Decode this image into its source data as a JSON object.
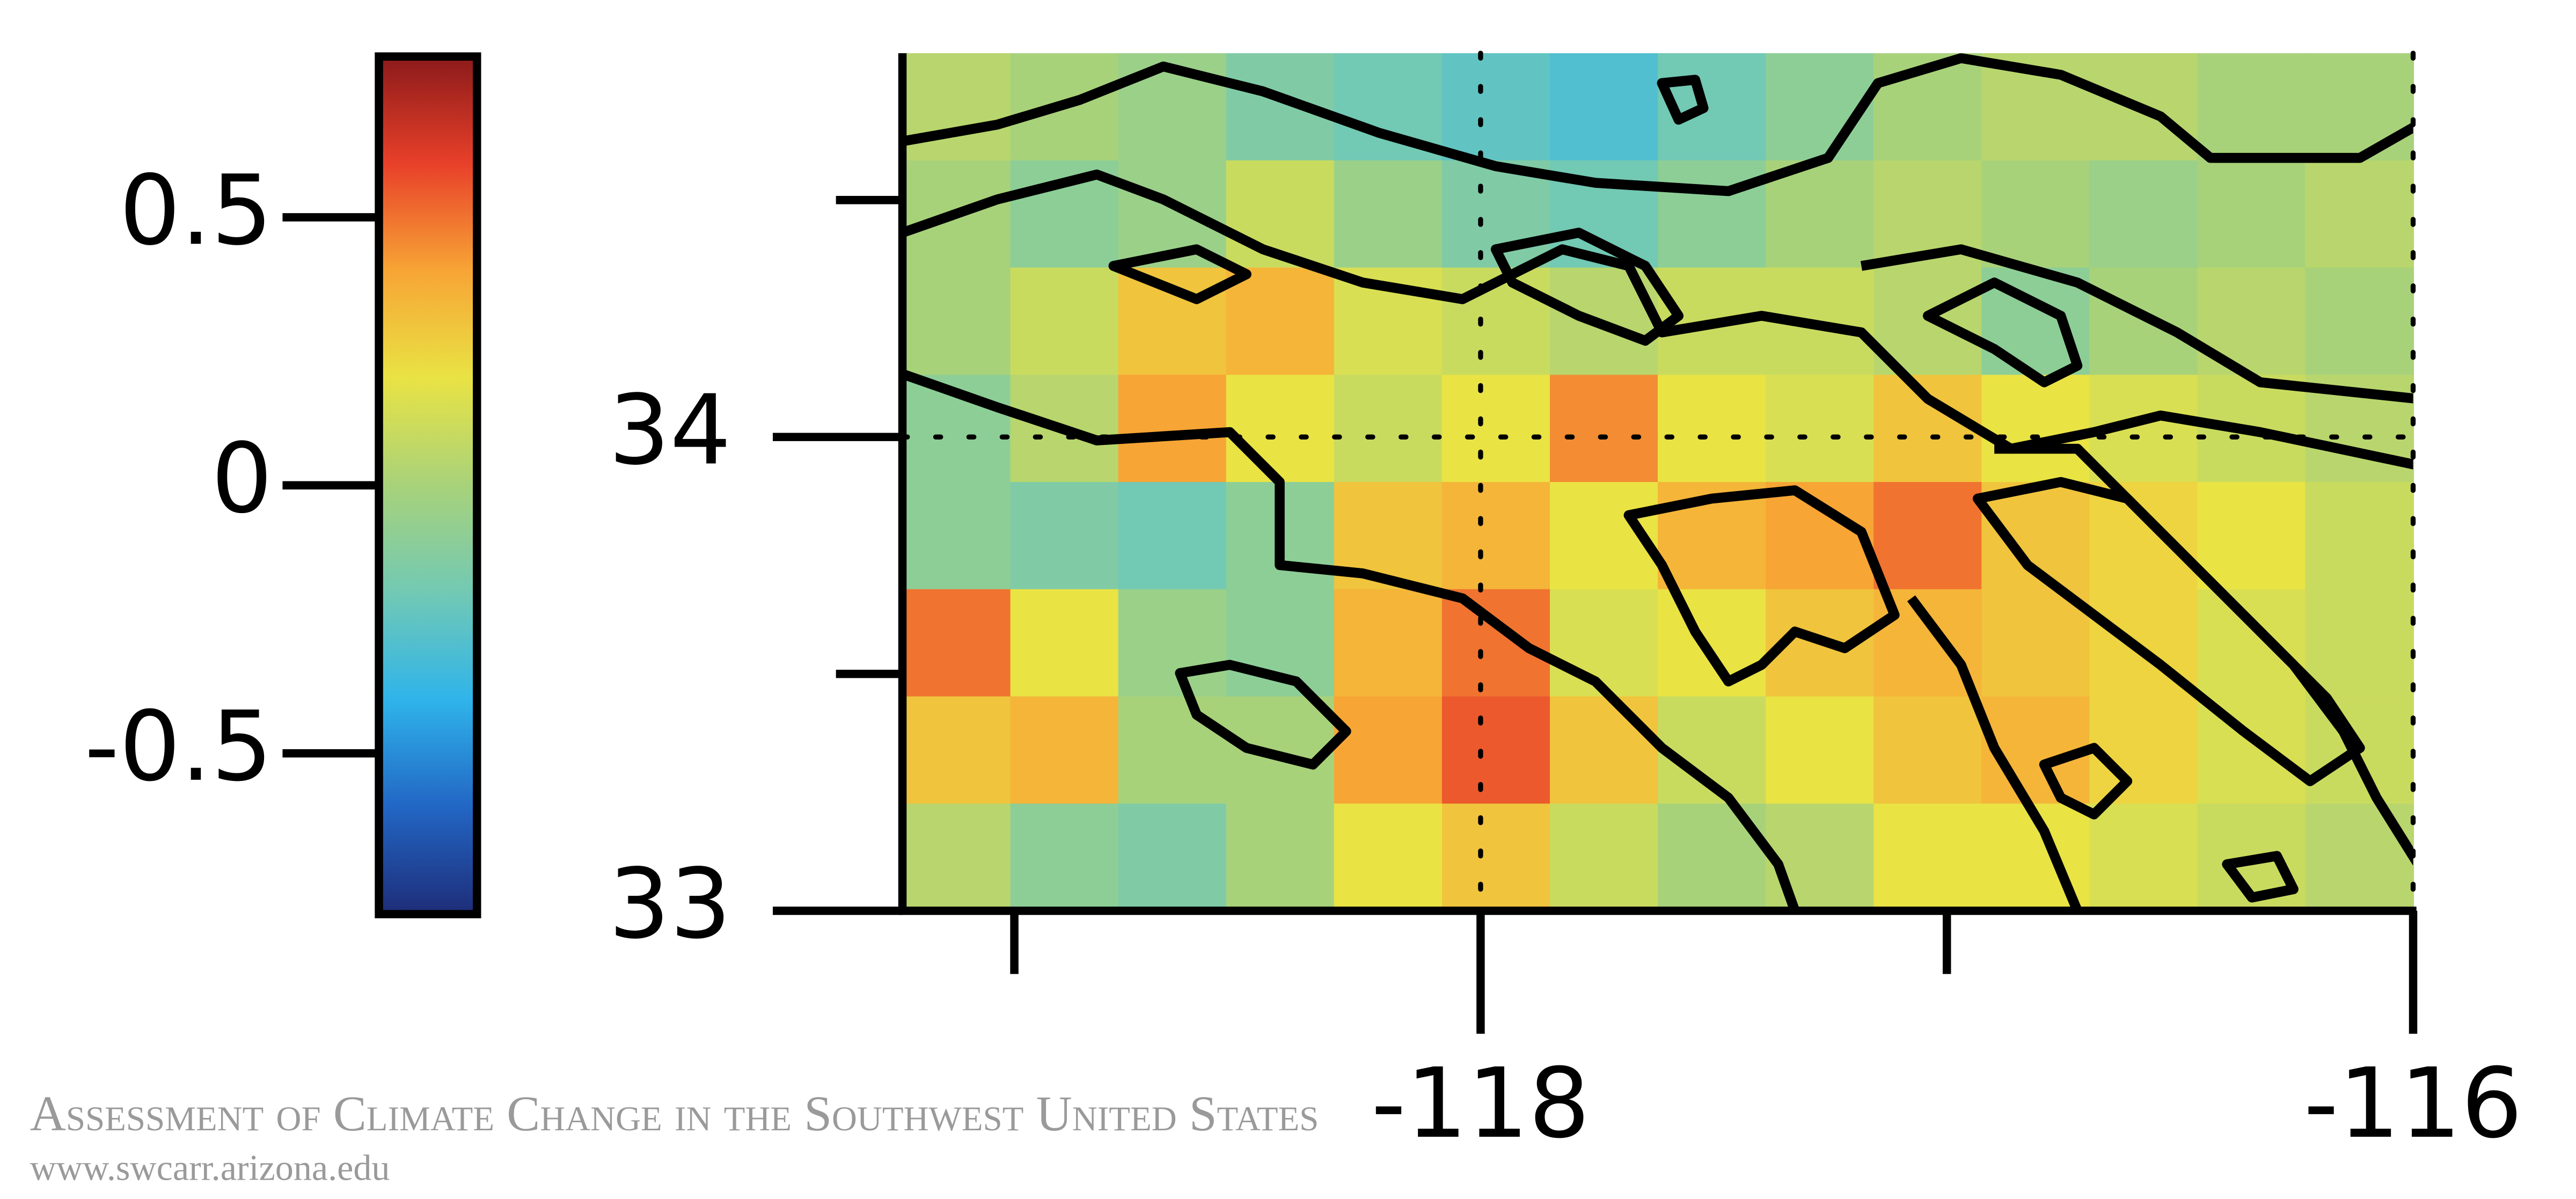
{
  "chart_data": {
    "type": "heatmap",
    "xlim": [
      -119.24,
      -116
    ],
    "ylim": [
      33,
      34.81
    ],
    "xticks": [
      -118,
      -116
    ],
    "xminor_ticks": [
      -119,
      -117
    ],
    "yticks": [
      33,
      34
    ],
    "yminor_ticks": [
      33.5,
      34.5
    ],
    "grid": true,
    "clim": [
      -0.8,
      0.8
    ],
    "cticks": [
      -0.5,
      0,
      0.5
    ],
    "colorscale": [
      "#1e2d78",
      "#2266c4",
      "#2fb4ea",
      "#72c9b4",
      "#a8d27a",
      "#e9e344",
      "#f7a535",
      "#e8402a",
      "#8b1a1a"
    ],
    "z": [
      [
        0.05,
        0,
        -0.05,
        -0.15,
        -0.2,
        -0.25,
        -0.3,
        -0.2,
        -0.1,
        0,
        0.05,
        0.05,
        0,
        0
      ],
      [
        0,
        -0.1,
        -0.05,
        0.1,
        -0.05,
        -0.15,
        -0.2,
        -0.1,
        0,
        0.05,
        0,
        -0.05,
        0,
        0.05
      ],
      [
        0,
        0.1,
        0.3,
        0.35,
        0.15,
        0.1,
        0.05,
        0.1,
        0.1,
        0.05,
        -0.1,
        0,
        0.05,
        0
      ],
      [
        -0.1,
        0.05,
        0.4,
        0.2,
        0.1,
        0.2,
        0.45,
        0.2,
        0.15,
        0.3,
        0.2,
        0.15,
        0.1,
        0.05
      ],
      [
        -0.1,
        -0.15,
        -0.2,
        -0.1,
        0.3,
        0.35,
        0.2,
        0.35,
        0.4,
        0.5,
        0.3,
        0.25,
        0.2,
        0.1
      ],
      [
        0.5,
        0.2,
        -0.05,
        -0.1,
        0.35,
        0.5,
        0.15,
        0.2,
        0.3,
        0.35,
        0.3,
        0.25,
        0.15,
        0.1
      ],
      [
        0.3,
        0.35,
        0,
        0,
        0.4,
        0.55,
        0.3,
        0.1,
        0.2,
        0.3,
        0.35,
        0.25,
        0.15,
        0.1
      ],
      [
        0.05,
        -0.1,
        -0.15,
        0,
        0.2,
        0.3,
        0.1,
        0,
        0.05,
        0.2,
        0.2,
        0.15,
        0.1,
        0.05
      ]
    ]
  },
  "watermark": {
    "title": "Assessment of Climate Change in the Southwest United States",
    "url": "www.swcarr.arizona.edu"
  }
}
